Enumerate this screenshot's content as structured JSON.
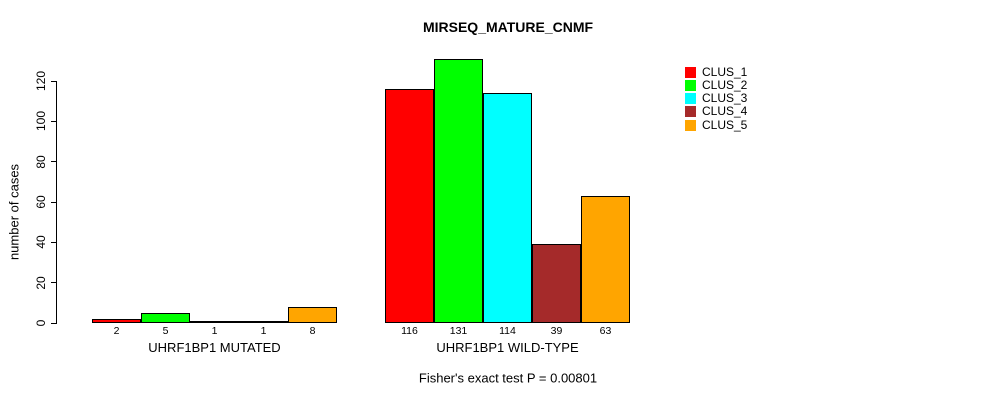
{
  "page": {
    "background": "#FFFFFF",
    "text_color": "#000000"
  },
  "chart_data": {
    "type": "bar",
    "title": "MIRSEQ_MATURE_CNMF",
    "ylabel": "number of cases",
    "xlabel": "",
    "ylim": [
      0,
      131
    ],
    "yticks": [
      0,
      20,
      40,
      60,
      80,
      100,
      120
    ],
    "grid": false,
    "bar_border_color": "#000000",
    "show_bar_values": true,
    "categories": [
      "UHRF1BP1 MUTATED",
      "UHRF1BP1 WILD-TYPE"
    ],
    "series": [
      {
        "name": "CLUS_1",
        "color": "#FF0000",
        "values": [
          2,
          116
        ]
      },
      {
        "name": "CLUS_2",
        "color": "#00FF00",
        "values": [
          5,
          131
        ]
      },
      {
        "name": "CLUS_3",
        "color": "#00FFFF",
        "values": [
          1,
          114
        ]
      },
      {
        "name": "CLUS_4",
        "color": "#A52A2A",
        "values": [
          1,
          39
        ]
      },
      {
        "name": "CLUS_5",
        "color": "#FFA500",
        "values": [
          8,
          63
        ]
      }
    ],
    "legend": {
      "position": "right",
      "entries": [
        "CLUS_1",
        "CLUS_2",
        "CLUS_3",
        "CLUS_4",
        "CLUS_5"
      ],
      "colors": [
        "#FF0000",
        "#00FF00",
        "#00FFFF",
        "#A52A2A",
        "#FFA500"
      ]
    },
    "annotation": "Fisher's exact test P = 0.00801"
  }
}
